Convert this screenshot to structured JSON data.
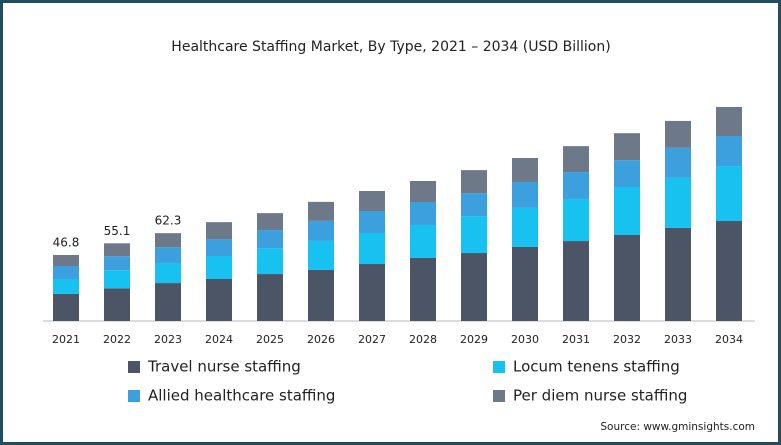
{
  "chart_data": {
    "type": "stacked-bar",
    "title": "Healthcare Staffing Market, By Type, 2021 – 2034 (USD Billion)",
    "categories": [
      "2021",
      "2022",
      "2023",
      "2024",
      "2025",
      "2026",
      "2027",
      "2028",
      "2029",
      "2030",
      "2031",
      "2032",
      "2033",
      "2034"
    ],
    "series": [
      {
        "name": "Travel nurse staffing",
        "color": "#4b5565",
        "values": [
          19.2,
          23.2,
          26.9,
          29.8,
          33.3,
          36.2,
          40.4,
          44.7,
          48.2,
          52.5,
          56.7,
          61.0,
          66.0,
          70.9
        ]
      },
      {
        "name": "Locum tenens staffing",
        "color": "#17c2f0",
        "values": [
          10.6,
          12.8,
          14.2,
          16.3,
          18.4,
          20.6,
          22.0,
          23.4,
          26.2,
          27.7,
          29.8,
          34.0,
          35.5,
          39.0
        ]
      },
      {
        "name": "Allied healthcare staffing",
        "color": "#3ba0dd",
        "values": [
          9.2,
          9.9,
          11.3,
          12.0,
          12.8,
          14.2,
          15.6,
          16.3,
          16.3,
          18.4,
          19.1,
          19.1,
          21.3,
          21.3
        ]
      },
      {
        "name": "Per diem nurse staffing",
        "color": "#6d7988",
        "values": [
          7.8,
          9.2,
          9.9,
          12.0,
          12.0,
          13.5,
          14.2,
          14.9,
          16.3,
          17.0,
          18.4,
          19.1,
          19.1,
          20.6
        ]
      }
    ],
    "totals": [
      46.8,
      55.1,
      62.3,
      null,
      null,
      null,
      null,
      null,
      null,
      null,
      null,
      null,
      null,
      null
    ],
    "source": "Source: www.gminsights.com"
  }
}
